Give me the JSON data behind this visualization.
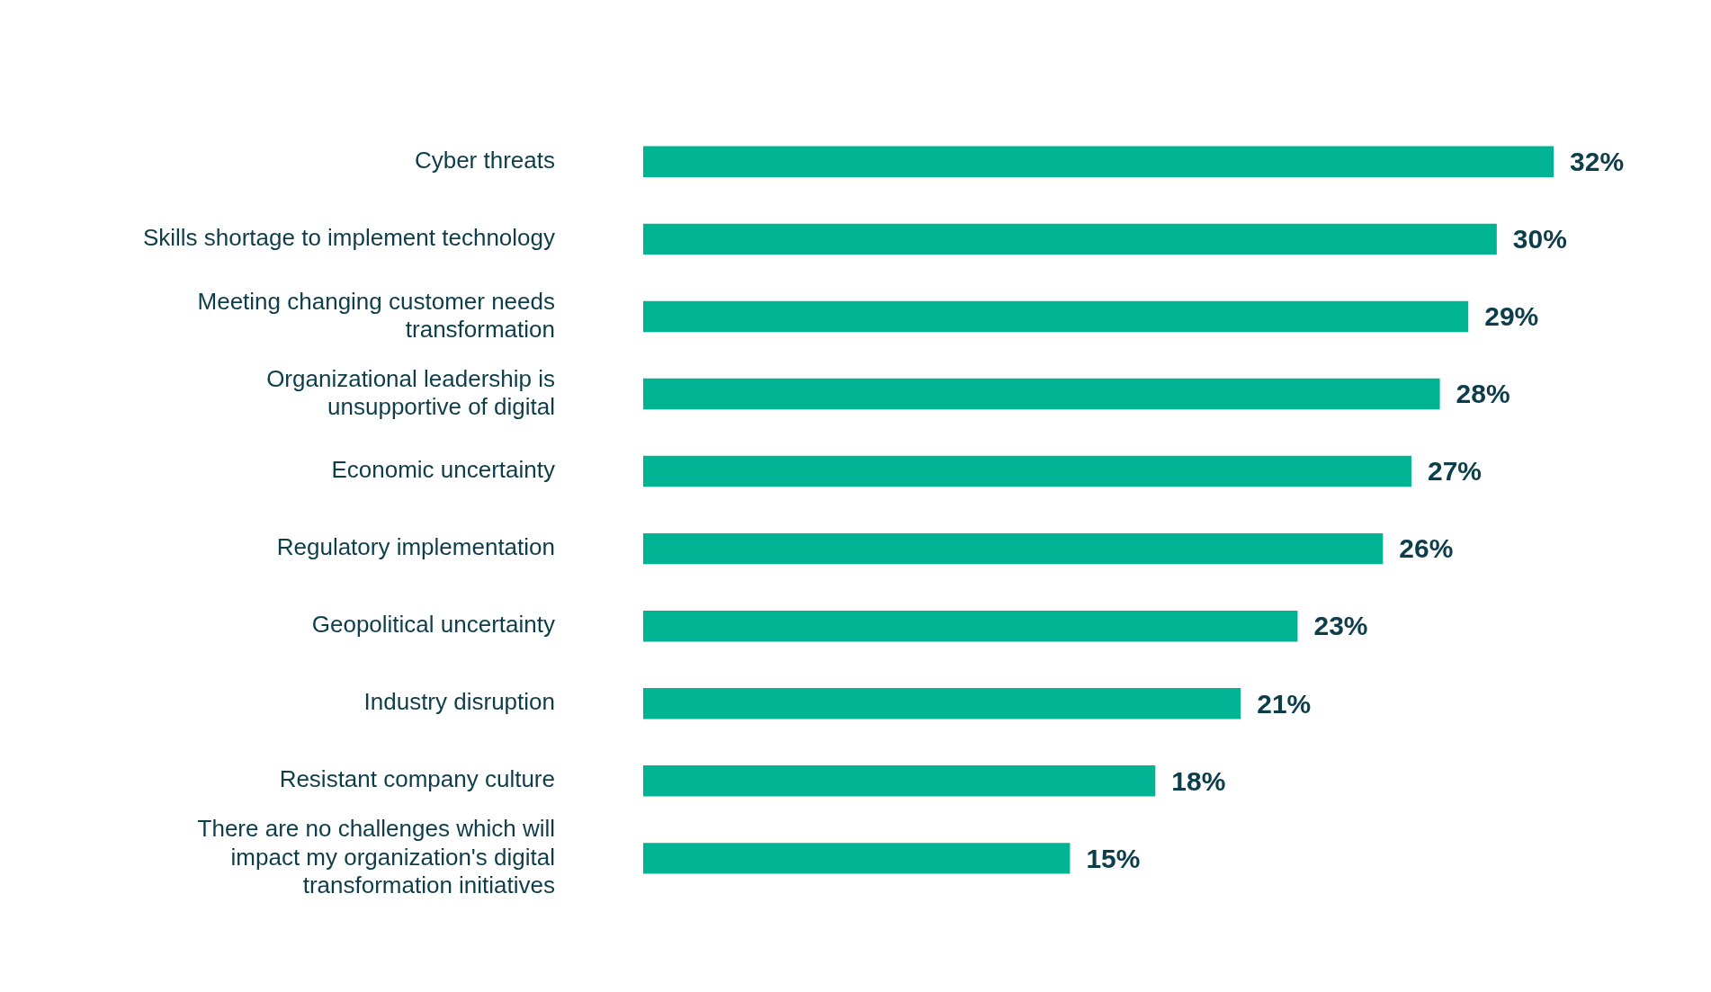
{
  "chart_data": {
    "type": "bar",
    "orientation": "horizontal",
    "categories": [
      "Cyber threats",
      "Skills shortage to implement technology",
      "Meeting changing customer needs transformation",
      "Organizational leadership is unsupportive of digital",
      "Economic uncertainty",
      "Regulatory implementation",
      "Geopolitical uncertainty",
      "Industry disruption",
      "Resistant company culture",
      "There are no challenges which will impact my organization's digital transformation initiatives"
    ],
    "values": [
      32,
      30,
      29,
      28,
      27,
      26,
      23,
      21,
      18,
      15
    ],
    "value_labels": [
      "32%",
      "30%",
      "29%",
      "28%",
      "27%",
      "26%",
      "23%",
      "21%",
      "18%",
      "15%"
    ],
    "color": "#00b493",
    "legend": false,
    "tick_labels": "y"
  }
}
